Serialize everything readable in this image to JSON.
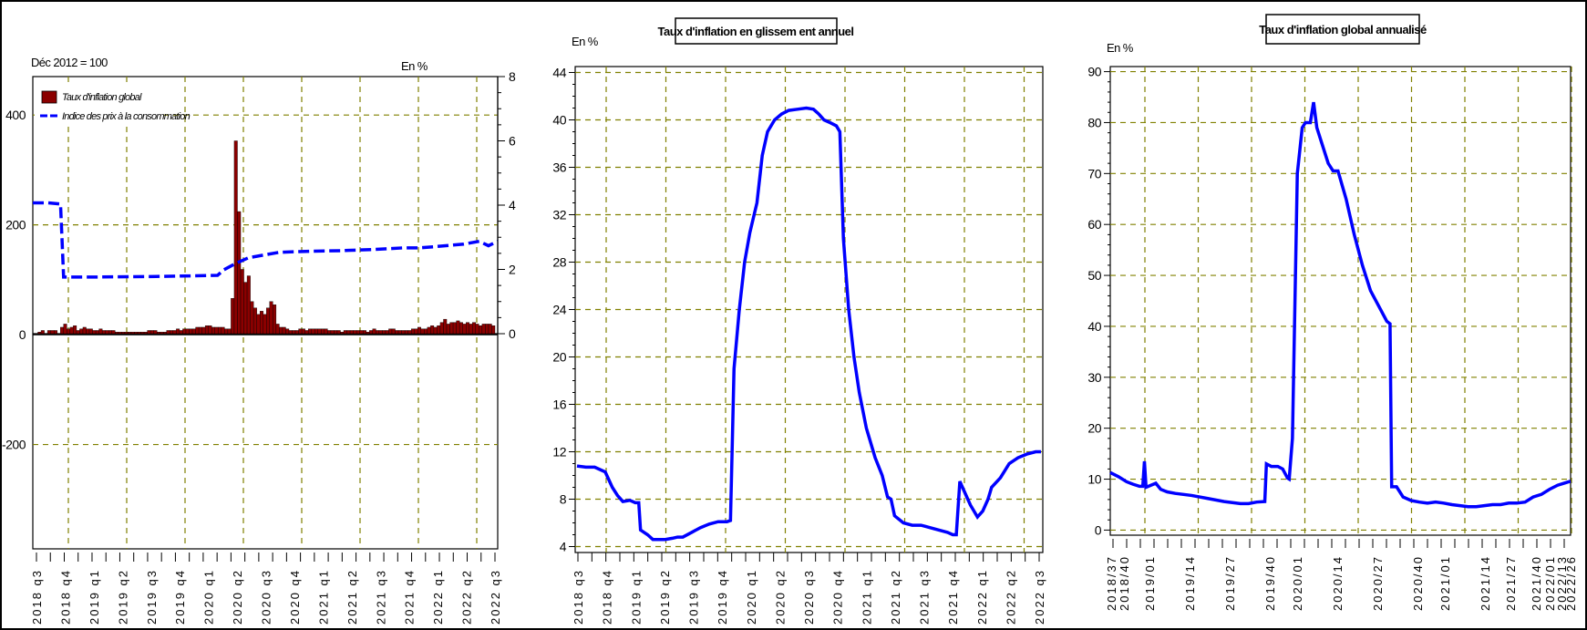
{
  "chart_data": [
    {
      "type": "bar+line",
      "top_left_label": "Déc 2012 = 100",
      "unit_label": "En %",
      "legend": [
        "Taux d'inflation global",
        "Indice des prix à la consommation"
      ],
      "left_axis": {
        "ticks": [
          400,
          200,
          0,
          -200
        ],
        "range": [
          -390,
          470
        ]
      },
      "right_axis": {
        "ticks": [
          8,
          6,
          4,
          2,
          0
        ],
        "range": [
          0,
          8
        ]
      },
      "x_ticks": [
        "2018 q3",
        "2018 q4",
        "2019 q1",
        "2019 q2",
        "2019 q3",
        "2019 q4",
        "2020 q1",
        "2020 q2",
        "2020 q3",
        "2020 q4",
        "2021 q1",
        "2021 q2",
        "2021 q3",
        "2021 q4",
        "2022 q1",
        "2022 q2",
        "2022 q3"
      ],
      "bars_inflation_pct": [
        0.0,
        0.05,
        0.1,
        0.0,
        0.1,
        0.1,
        0.1,
        0.0,
        0.2,
        0.3,
        0.15,
        0.2,
        0.25,
        0.1,
        0.15,
        0.2,
        0.15,
        0.15,
        0.1,
        0.1,
        0.15,
        0.1,
        0.1,
        0.1,
        0.1,
        0.05,
        0.05,
        0.05,
        0.05,
        0.05,
        0.05,
        0.05,
        0.05,
        0.05,
        0.05,
        0.1,
        0.1,
        0.1,
        0.05,
        0.05,
        0.05,
        0.1,
        0.1,
        0.1,
        0.15,
        0.1,
        0.15,
        0.15,
        0.15,
        0.15,
        0.2,
        0.2,
        0.2,
        0.25,
        0.25,
        0.2,
        0.2,
        0.2,
        0.2,
        0.15,
        0.15,
        1.1,
        6.0,
        3.8,
        2.0,
        1.6,
        1.8,
        1.0,
        0.8,
        0.6,
        0.7,
        0.6,
        0.8,
        1.0,
        0.9,
        0.3,
        0.2,
        0.2,
        0.15,
        0.1,
        0.1,
        0.1,
        0.15,
        0.15,
        0.1,
        0.15,
        0.15,
        0.15,
        0.15,
        0.15,
        0.15,
        0.1,
        0.1,
        0.1,
        0.1,
        0.05,
        0.1,
        0.1,
        0.1,
        0.1,
        0.1,
        0.1,
        0.1,
        0.05,
        0.1,
        0.15,
        0.1,
        0.1,
        0.1,
        0.1,
        0.15,
        0.15,
        0.1,
        0.1,
        0.1,
        0.1,
        0.1,
        0.15,
        0.15,
        0.2,
        0.15,
        0.15,
        0.2,
        0.25,
        0.2,
        0.25,
        0.35,
        0.45,
        0.3,
        0.35,
        0.35,
        0.4,
        0.35,
        0.3,
        0.35,
        0.3,
        0.35,
        0.3,
        0.25,
        0.3,
        0.3,
        0.3,
        0.25
      ],
      "cpi_line": [
        [
          0,
          240
        ],
        [
          5,
          240
        ],
        [
          9,
          238
        ],
        [
          10,
          105
        ],
        [
          20,
          105
        ],
        [
          40,
          106
        ],
        [
          60,
          108
        ],
        [
          62,
          118
        ],
        [
          66,
          130
        ],
        [
          70,
          140
        ],
        [
          75,
          145
        ],
        [
          80,
          150
        ],
        [
          90,
          152
        ],
        [
          100,
          153
        ],
        [
          110,
          155
        ],
        [
          120,
          158
        ],
        [
          125,
          158
        ],
        [
          130,
          160
        ],
        [
          140,
          165
        ],
        [
          145,
          170
        ],
        [
          148,
          162
        ],
        [
          151,
          170
        ]
      ]
    },
    {
      "type": "line",
      "title": "Taux d'inflation en glissem ent annuel",
      "unit_label": "En %",
      "y_ticks": [
        44,
        40,
        36,
        32,
        28,
        24,
        20,
        16,
        12,
        8,
        4
      ],
      "ylim": [
        3.5,
        44.5
      ],
      "x_ticks": [
        "2018 q3",
        "2018 q4",
        "2019 q1",
        "2019 q2",
        "2019 q3",
        "2019 q4",
        "2020 q1",
        "2020 q2",
        "2020 q3",
        "2020 q4",
        "2021 q1",
        "2021 q2",
        "2021 q3",
        "2021 q4",
        "2022 q1",
        "2022 q2",
        "2022 q3"
      ],
      "series": [
        {
          "color": "#0000ff",
          "values": [
            [
              0,
              10.8
            ],
            [
              0.5,
              10.7
            ],
            [
              1,
              10.7
            ],
            [
              1.6,
              10.3
            ],
            [
              2.0,
              9.0
            ],
            [
              2.3,
              8.3
            ],
            [
              2.6,
              7.8
            ],
            [
              3.0,
              7.9
            ],
            [
              3.3,
              7.7
            ],
            [
              3.5,
              7.7
            ],
            [
              3.6,
              5.4
            ],
            [
              4.0,
              5.0
            ],
            [
              4.3,
              4.6
            ],
            [
              4.6,
              4.6
            ],
            [
              5.0,
              4.6
            ],
            [
              5.4,
              4.7
            ],
            [
              5.7,
              4.8
            ],
            [
              6.0,
              4.8
            ],
            [
              6.5,
              5.2
            ],
            [
              7.0,
              5.6
            ],
            [
              7.5,
              5.9
            ],
            [
              8.0,
              6.1
            ],
            [
              8.5,
              6.1
            ],
            [
              8.7,
              6.2
            ],
            [
              8.9,
              19.0
            ],
            [
              9.2,
              24.0
            ],
            [
              9.5,
              28.0
            ],
            [
              9.8,
              30.5
            ],
            [
              10.2,
              33.0
            ],
            [
              10.5,
              37.0
            ],
            [
              10.8,
              39.0
            ],
            [
              11.2,
              40.0
            ],
            [
              11.6,
              40.5
            ],
            [
              12.0,
              40.8
            ],
            [
              12.5,
              40.9
            ],
            [
              13.0,
              41.0
            ],
            [
              13.4,
              40.9
            ],
            [
              13.7,
              40.5
            ],
            [
              14.0,
              40.0
            ],
            [
              14.3,
              39.8
            ],
            [
              14.7,
              39.5
            ],
            [
              14.9,
              39.0
            ],
            [
              15.1,
              30.0
            ],
            [
              15.4,
              24.0
            ],
            [
              15.7,
              20.0
            ],
            [
              16.0,
              17.0
            ],
            [
              16.4,
              14.0
            ],
            [
              16.9,
              11.5
            ],
            [
              17.3,
              10.0
            ],
            [
              17.6,
              8.2
            ],
            [
              17.8,
              8.0
            ],
            [
              18.0,
              6.6
            ],
            [
              18.5,
              6.0
            ],
            [
              19.0,
              5.8
            ],
            [
              19.5,
              5.8
            ],
            [
              20.0,
              5.6
            ],
            [
              20.5,
              5.4
            ],
            [
              21.0,
              5.2
            ],
            [
              21.3,
              5.0
            ],
            [
              21.5,
              5.0
            ],
            [
              21.7,
              9.5
            ],
            [
              22.0,
              8.5
            ],
            [
              22.3,
              7.5
            ],
            [
              22.7,
              6.5
            ],
            [
              23.0,
              7.0
            ],
            [
              23.3,
              8.0
            ],
            [
              23.5,
              9.0
            ],
            [
              24.0,
              9.8
            ],
            [
              24.5,
              11.0
            ],
            [
              25.0,
              11.5
            ],
            [
              25.5,
              11.8
            ],
            [
              26.0,
              12.0
            ],
            [
              26.3,
              12.0
            ]
          ]
        }
      ]
    },
    {
      "type": "line",
      "title": "Taux d'inflation global annualisé",
      "unit_label": "En %",
      "y_ticks": [
        90,
        80,
        70,
        60,
        50,
        40,
        30,
        20,
        10,
        0
      ],
      "ylim": [
        -1,
        91
      ],
      "x_ticks": [
        "2018/37",
        "2018/40",
        "2019/01",
        "2019/14",
        "2019/27",
        "2019/40",
        "2020/01",
        "2020/14",
        "2020/27",
        "2020/40",
        "2021/01",
        "2021/14",
        "2021/27",
        "2021/40",
        "2022/01",
        "2022/13",
        "2022/26"
      ],
      "series": [
        {
          "color": "#0000ff",
          "values": [
            [
              0,
              11.3
            ],
            [
              0.5,
              10.5
            ],
            [
              1.0,
              9.5
            ],
            [
              1.4,
              9.0
            ],
            [
              1.8,
              8.6
            ],
            [
              2.0,
              8.6
            ],
            [
              2.1,
              13.5
            ],
            [
              2.2,
              8.4
            ],
            [
              2.5,
              8.8
            ],
            [
              2.8,
              9.2
            ],
            [
              3.1,
              8.0
            ],
            [
              3.5,
              7.5
            ],
            [
              4.0,
              7.2
            ],
            [
              5.0,
              6.8
            ],
            [
              6.0,
              6.2
            ],
            [
              7.0,
              5.6
            ],
            [
              8.0,
              5.2
            ],
            [
              8.5,
              5.2
            ],
            [
              9.0,
              5.5
            ],
            [
              9.5,
              5.6
            ],
            [
              9.6,
              13.0
            ],
            [
              9.9,
              12.5
            ],
            [
              10.3,
              12.5
            ],
            [
              10.6,
              12.0
            ],
            [
              10.9,
              10.2
            ],
            [
              11.0,
              10.0
            ],
            [
              11.2,
              18.0
            ],
            [
              11.5,
              70.0
            ],
            [
              11.8,
              79.0
            ],
            [
              12.0,
              80.0
            ],
            [
              12.3,
              80.0
            ],
            [
              12.5,
              84.0
            ],
            [
              12.7,
              79.0
            ],
            [
              13.0,
              76.0
            ],
            [
              13.4,
              72.0
            ],
            [
              13.7,
              70.5
            ],
            [
              14.0,
              70.5
            ],
            [
              14.5,
              65.0
            ],
            [
              15.0,
              58.0
            ],
            [
              15.5,
              52.0
            ],
            [
              16.0,
              47.0
            ],
            [
              16.5,
              44.0
            ],
            [
              17.0,
              41.0
            ],
            [
              17.2,
              40.5
            ],
            [
              17.3,
              8.5
            ],
            [
              17.6,
              8.5
            ],
            [
              18.0,
              6.5
            ],
            [
              18.5,
              5.8
            ],
            [
              19.0,
              5.5
            ],
            [
              19.5,
              5.3
            ],
            [
              20.0,
              5.5
            ],
            [
              20.5,
              5.3
            ],
            [
              21.0,
              5.0
            ],
            [
              21.5,
              4.8
            ],
            [
              22.0,
              4.6
            ],
            [
              22.5,
              4.6
            ],
            [
              23.0,
              4.8
            ],
            [
              23.5,
              5.0
            ],
            [
              24.0,
              5.0
            ],
            [
              24.5,
              5.3
            ],
            [
              25.0,
              5.3
            ],
            [
              25.5,
              5.5
            ],
            [
              26.0,
              6.5
            ],
            [
              26.5,
              7.0
            ],
            [
              27.0,
              8.0
            ],
            [
              27.5,
              8.8
            ],
            [
              28.0,
              9.3
            ],
            [
              28.3,
              9.6
            ]
          ]
        }
      ]
    }
  ]
}
